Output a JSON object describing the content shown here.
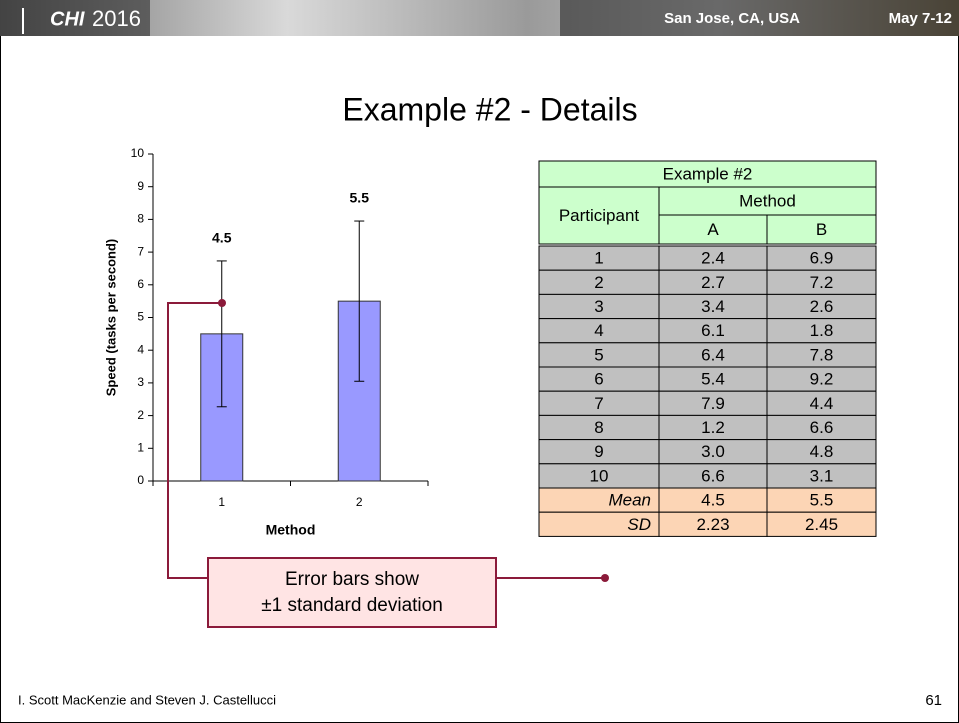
{
  "header": {
    "logo": "CHI",
    "year": "2016",
    "location": "San Jose, CA, USA",
    "dates": "May 7-12"
  },
  "title": "Example #2 - Details",
  "chart_data": {
    "type": "bar",
    "x_label": "Method",
    "y_label": "Speed (tasks per second)",
    "categories": [
      "1",
      "2"
    ],
    "values": [
      4.5,
      5.5
    ],
    "errors": [
      2.23,
      2.45
    ],
    "color": "#9999ff",
    "ylim": [
      0,
      10
    ],
    "yticks": [
      0,
      1,
      2,
      3,
      4,
      5,
      6,
      7,
      8,
      9,
      10
    ],
    "grid": false
  },
  "table": {
    "title": "Example #2",
    "columns": [
      "Participant",
      "Method",
      "A",
      "B"
    ],
    "rows": [
      [
        "1",
        "2.4",
        "6.9"
      ],
      [
        "2",
        "2.7",
        "7.2"
      ],
      [
        "3",
        "3.4",
        "2.6"
      ],
      [
        "4",
        "6.1",
        "1.8"
      ],
      [
        "5",
        "6.4",
        "7.8"
      ],
      [
        "6",
        "5.4",
        "9.2"
      ],
      [
        "7",
        "7.9",
        "4.4"
      ],
      [
        "8",
        "1.2",
        "6.6"
      ],
      [
        "9",
        "3.0",
        "4.8"
      ],
      [
        "10",
        "6.6",
        "3.1"
      ]
    ],
    "summary": [
      [
        "Mean",
        "4.5",
        "5.5"
      ],
      [
        "SD",
        "2.23",
        "2.45"
      ]
    ]
  },
  "callout": [
    "Error bars show",
    "±1 standard deviation"
  ],
  "footer": {
    "authors": "I. Scott MacKenzie and Steven J. Castellucci",
    "page": "61"
  }
}
